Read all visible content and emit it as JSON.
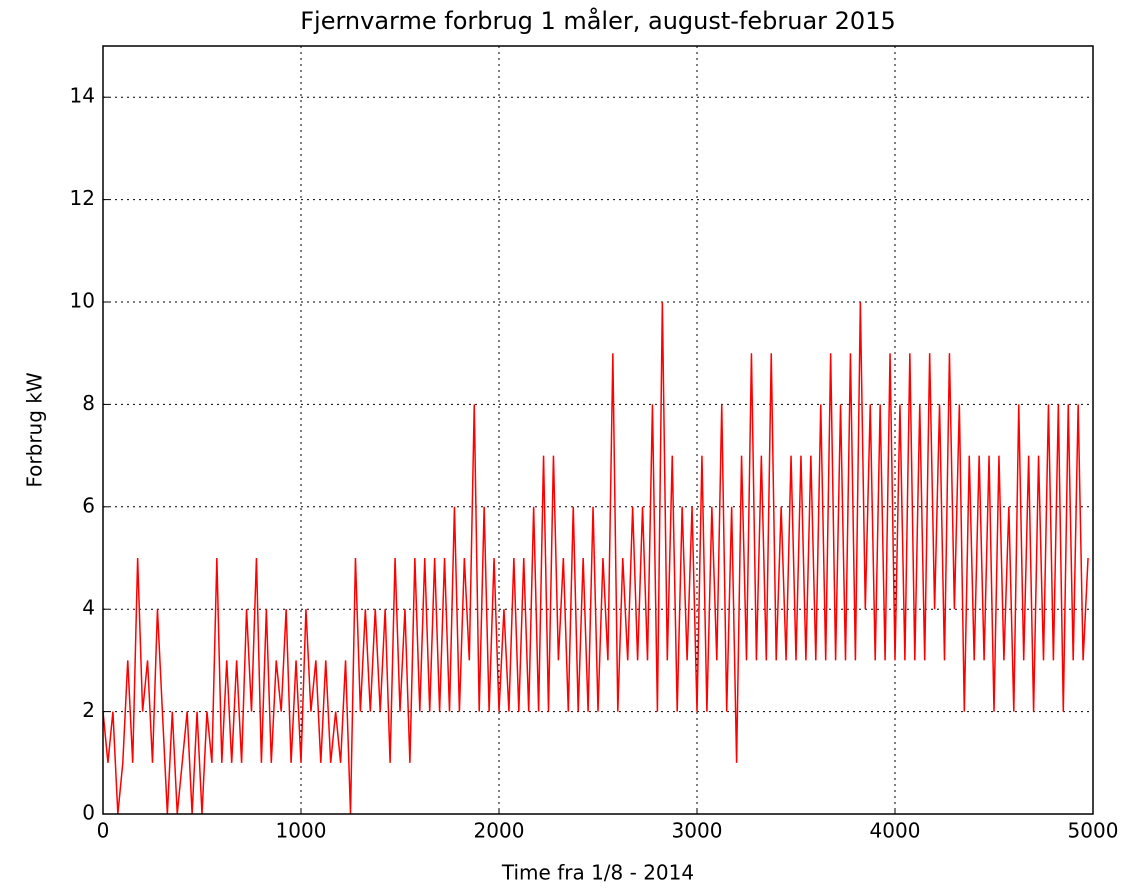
{
  "chart_data": {
    "type": "line",
    "title": "Fjernvarme forbrug 1 måler, august-februar 2015",
    "x_label": "Time fra 1/8 - 2014",
    "y_label": "Forbrug kW",
    "xlim": [
      0,
      5000
    ],
    "ylim": [
      0,
      15
    ],
    "xticks": [
      0,
      1000,
      2000,
      3000,
      4000,
      5000
    ],
    "yticks": [
      0,
      2,
      4,
      6,
      8,
      10,
      12,
      14
    ],
    "grid": true,
    "x": [
      0,
      25,
      50,
      75,
      100,
      125,
      150,
      175,
      200,
      225,
      250,
      275,
      300,
      325,
      350,
      375,
      400,
      425,
      450,
      475,
      500,
      525,
      550,
      575,
      600,
      625,
      650,
      675,
      700,
      725,
      750,
      775,
      800,
      825,
      850,
      875,
      900,
      925,
      950,
      975,
      1000,
      1025,
      1050,
      1075,
      1100,
      1125,
      1150,
      1175,
      1200,
      1225,
      1250,
      1275,
      1300,
      1325,
      1350,
      1375,
      1400,
      1425,
      1450,
      1475,
      1500,
      1525,
      1550,
      1575,
      1600,
      1625,
      1650,
      1675,
      1700,
      1725,
      1750,
      1775,
      1800,
      1825,
      1850,
      1875,
      1900,
      1925,
      1950,
      1975,
      2000,
      2025,
      2050,
      2075,
      2100,
      2125,
      2150,
      2175,
      2200,
      2225,
      2250,
      2275,
      2300,
      2325,
      2350,
      2375,
      2400,
      2425,
      2450,
      2475,
      2500,
      2525,
      2550,
      2575,
      2600,
      2625,
      2650,
      2675,
      2700,
      2725,
      2750,
      2775,
      2800,
      2825,
      2850,
      2875,
      2900,
      2925,
      2950,
      2975,
      3000,
      3025,
      3050,
      3075,
      3100,
      3125,
      3150,
      3175,
      3200,
      3225,
      3250,
      3275,
      3300,
      3325,
      3350,
      3375,
      3400,
      3425,
      3450,
      3475,
      3500,
      3525,
      3550,
      3575,
      3600,
      3625,
      3650,
      3675,
      3700,
      3725,
      3750,
      3775,
      3800,
      3825,
      3850,
      3875,
      3900,
      3925,
      3950,
      3975,
      4000,
      4025,
      4050,
      4075,
      4100,
      4125,
      4150,
      4175,
      4200,
      4225,
      4250,
      4275,
      4300,
      4325,
      4350,
      4375,
      4400,
      4425,
      4450,
      4475,
      4500,
      4525,
      4550,
      4575,
      4600,
      4625,
      4650,
      4675,
      4700,
      4725,
      4750,
      4775,
      4800,
      4825,
      4850,
      4875,
      4900,
      4925,
      4950,
      4975
    ],
    "series": [
      {
        "color": "#ff0000",
        "values": [
          2,
          1,
          2,
          0,
          1,
          3,
          1,
          5,
          2,
          3,
          1,
          4,
          2,
          0,
          2,
          0,
          1,
          2,
          0,
          2,
          0,
          2,
          1,
          5,
          1,
          3,
          1,
          3,
          1,
          4,
          2,
          5,
          1,
          4,
          1,
          3,
          2,
          4,
          1,
          3,
          1,
          4,
          2,
          3,
          1,
          3,
          1,
          2,
          1,
          3,
          0,
          5,
          2,
          4,
          2,
          4,
          2,
          4,
          1,
          5,
          2,
          4,
          1,
          5,
          2,
          5,
          2,
          5,
          2,
          5,
          2,
          6,
          2,
          5,
          3,
          8,
          2,
          6,
          2,
          5,
          2,
          4,
          2,
          5,
          2,
          5,
          2,
          6,
          2,
          7,
          2,
          7,
          3,
          5,
          2,
          6,
          2,
          5,
          2,
          6,
          2,
          5,
          3,
          9,
          2,
          5,
          3,
          6,
          3,
          6,
          3,
          8,
          2,
          10,
          3,
          7,
          2,
          6,
          3,
          6,
          2,
          7,
          2,
          6,
          3,
          8,
          2,
          6,
          1,
          7,
          3,
          9,
          3,
          7,
          3,
          9,
          3,
          6,
          3,
          7,
          3,
          7,
          3,
          7,
          3,
          8,
          3,
          9,
          3,
          8,
          3,
          9,
          3,
          10,
          4,
          8,
          3,
          8,
          3,
          9,
          3,
          8,
          3,
          9,
          3,
          8,
          3,
          9,
          4,
          8,
          3,
          9,
          4,
          8,
          2,
          7,
          3,
          7,
          3,
          7,
          2,
          7,
          3,
          6,
          2,
          8,
          3,
          7,
          2,
          7,
          3,
          8,
          3,
          8,
          2,
          8,
          3,
          8,
          3,
          5
        ]
      }
    ]
  }
}
